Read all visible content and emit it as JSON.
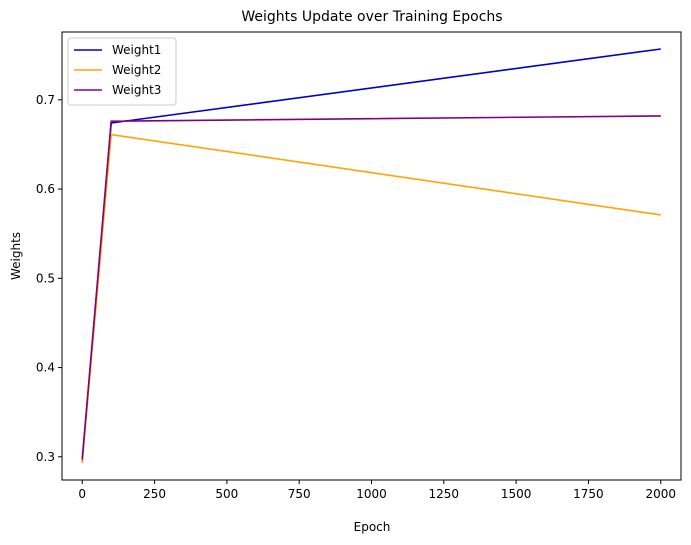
{
  "chart_data": {
    "type": "line",
    "title": "Weights Update over Training Epochs",
    "xlabel": "Epoch",
    "ylabel": "Weights",
    "xlim": [
      -70,
      2070
    ],
    "ylim": [
      0.274,
      0.776
    ],
    "xticks": [
      0,
      250,
      500,
      750,
      1000,
      1250,
      1500,
      1750,
      2000
    ],
    "yticks": [
      0.3,
      0.4,
      0.5,
      0.6,
      0.7
    ],
    "ytick_labels": [
      "0.3",
      "0.4",
      "0.5",
      "0.6",
      "0.7"
    ],
    "grid": false,
    "legend_position": "top-left",
    "x": [
      0,
      100,
      2000
    ],
    "series": [
      {
        "name": "Weight1",
        "color": "#0000cd",
        "values": [
          0.295,
          0.674,
          0.757
        ]
      },
      {
        "name": "Weight2",
        "color": "#ffa500",
        "values": [
          0.293,
          0.661,
          0.571
        ]
      },
      {
        "name": "Weight3",
        "color": "#800080",
        "values": [
          0.297,
          0.676,
          0.682
        ]
      }
    ]
  }
}
